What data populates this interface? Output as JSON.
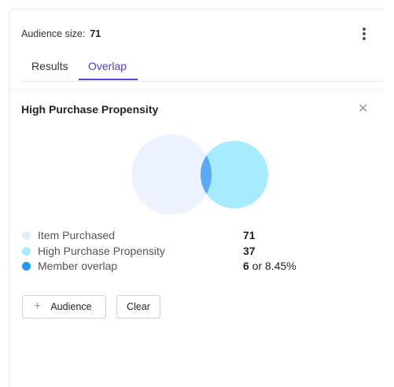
{
  "header": {
    "audience_size_label": "Audience size:",
    "audience_size_value": "71",
    "more_menu_icon": "kebab-vertical-icon"
  },
  "tabs": [
    {
      "label": "Results",
      "active": false
    },
    {
      "label": "Overlap",
      "active": true
    }
  ],
  "overlap": {
    "title": "High Purchase Propensity",
    "close_icon": "close-icon",
    "legend": [
      {
        "label": "Item Purchased",
        "value": "71",
        "color": "#e9efff"
      },
      {
        "label": "High Purchase Propensity",
        "value": "37",
        "color": "#a6ebff"
      },
      {
        "label": "Member overlap",
        "value": "6",
        "suffix": " or 8.45%",
        "color": "#2196f3"
      }
    ],
    "buttons": {
      "add_audience": "Audience",
      "add_icon": "plus-icon",
      "clear": "Clear"
    }
  },
  "colors": {
    "accent": "#5542e0",
    "set_a": "#ecf2ff",
    "set_b": "#a6ebff",
    "intersection": "#5aaaf3"
  }
}
